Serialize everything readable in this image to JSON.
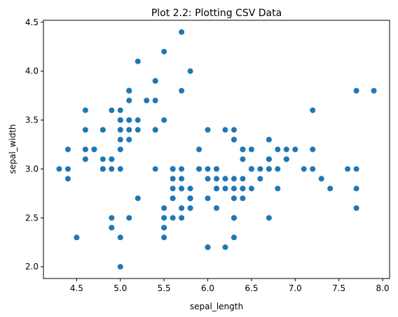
{
  "chart_data": {
    "type": "scatter",
    "title": "Plot 2.2: Plotting CSV Data",
    "xlabel": "sepal_length",
    "ylabel": "sepal_width",
    "xlim": [
      4.12,
      8.08
    ],
    "ylim": [
      1.88,
      4.52
    ],
    "grid": false,
    "legend": "none",
    "color": "#1f77b4",
    "xticks": [
      "4.5",
      "5.0",
      "5.5",
      "6.0",
      "6.5",
      "7.0",
      "7.5",
      "8.0"
    ],
    "yticks": [
      "2.0",
      "2.5",
      "3.0",
      "3.5",
      "4.0",
      "4.5"
    ],
    "points": [
      [
        5.1,
        3.5
      ],
      [
        4.9,
        3.0
      ],
      [
        4.7,
        3.2
      ],
      [
        4.6,
        3.1
      ],
      [
        5.0,
        3.6
      ],
      [
        5.4,
        3.9
      ],
      [
        4.6,
        3.4
      ],
      [
        5.0,
        3.4
      ],
      [
        4.4,
        2.9
      ],
      [
        4.9,
        3.1
      ],
      [
        5.4,
        3.7
      ],
      [
        4.8,
        3.4
      ],
      [
        4.8,
        3.0
      ],
      [
        4.3,
        3.0
      ],
      [
        5.8,
        4.0
      ],
      [
        5.7,
        4.4
      ],
      [
        5.4,
        3.9
      ],
      [
        5.1,
        3.5
      ],
      [
        5.7,
        3.8
      ],
      [
        5.1,
        3.8
      ],
      [
        5.4,
        3.4
      ],
      [
        5.1,
        3.7
      ],
      [
        4.6,
        3.6
      ],
      [
        5.1,
        3.3
      ],
      [
        4.8,
        3.4
      ],
      [
        5.0,
        3.0
      ],
      [
        5.0,
        3.4
      ],
      [
        5.2,
        3.5
      ],
      [
        5.2,
        3.4
      ],
      [
        4.7,
        3.2
      ],
      [
        4.8,
        3.1
      ],
      [
        5.4,
        3.4
      ],
      [
        5.2,
        4.1
      ],
      [
        5.5,
        4.2
      ],
      [
        4.9,
        3.1
      ],
      [
        5.0,
        3.2
      ],
      [
        5.5,
        3.5
      ],
      [
        4.9,
        3.6
      ],
      [
        4.4,
        3.0
      ],
      [
        5.1,
        3.4
      ],
      [
        5.0,
        3.5
      ],
      [
        4.5,
        2.3
      ],
      [
        4.4,
        3.2
      ],
      [
        5.0,
        3.5
      ],
      [
        5.1,
        3.8
      ],
      [
        4.8,
        3.0
      ],
      [
        5.1,
        3.8
      ],
      [
        4.6,
        3.2
      ],
      [
        5.3,
        3.7
      ],
      [
        5.0,
        3.3
      ],
      [
        7.0,
        3.2
      ],
      [
        6.4,
        3.2
      ],
      [
        6.9,
        3.1
      ],
      [
        5.5,
        2.3
      ],
      [
        6.5,
        2.8
      ],
      [
        5.7,
        2.8
      ],
      [
        6.3,
        3.3
      ],
      [
        4.9,
        2.4
      ],
      [
        6.6,
        2.9
      ],
      [
        5.2,
        2.7
      ],
      [
        5.0,
        2.0
      ],
      [
        5.9,
        3.0
      ],
      [
        6.0,
        2.2
      ],
      [
        6.1,
        2.9
      ],
      [
        5.6,
        2.9
      ],
      [
        6.7,
        3.1
      ],
      [
        5.6,
        3.0
      ],
      [
        5.8,
        2.7
      ],
      [
        6.2,
        2.2
      ],
      [
        5.6,
        2.5
      ],
      [
        5.9,
        3.2
      ],
      [
        6.1,
        2.8
      ],
      [
        6.3,
        2.5
      ],
      [
        6.1,
        2.8
      ],
      [
        6.4,
        2.9
      ],
      [
        6.6,
        3.0
      ],
      [
        6.8,
        2.8
      ],
      [
        6.7,
        3.0
      ],
      [
        6.0,
        2.9
      ],
      [
        5.7,
        2.6
      ],
      [
        5.5,
        2.4
      ],
      [
        5.5,
        2.4
      ],
      [
        5.8,
        2.7
      ],
      [
        6.0,
        2.7
      ],
      [
        5.4,
        3.0
      ],
      [
        6.0,
        3.4
      ],
      [
        6.7,
        3.1
      ],
      [
        6.3,
        2.3
      ],
      [
        5.6,
        3.0
      ],
      [
        5.5,
        2.5
      ],
      [
        5.5,
        2.6
      ],
      [
        6.1,
        3.0
      ],
      [
        5.8,
        2.6
      ],
      [
        5.0,
        2.3
      ],
      [
        5.6,
        2.7
      ],
      [
        5.7,
        3.0
      ],
      [
        5.7,
        2.9
      ],
      [
        6.2,
        2.9
      ],
      [
        5.1,
        2.5
      ],
      [
        5.7,
        2.8
      ],
      [
        6.3,
        3.3
      ],
      [
        5.8,
        2.7
      ],
      [
        7.1,
        3.0
      ],
      [
        6.3,
        2.9
      ],
      [
        6.5,
        3.0
      ],
      [
        7.6,
        3.0
      ],
      [
        4.9,
        2.5
      ],
      [
        7.3,
        2.9
      ],
      [
        6.7,
        2.5
      ],
      [
        7.2,
        3.6
      ],
      [
        6.5,
        3.2
      ],
      [
        6.4,
        2.7
      ],
      [
        6.8,
        3.0
      ],
      [
        5.7,
        2.5
      ],
      [
        5.8,
        2.8
      ],
      [
        6.4,
        3.2
      ],
      [
        6.5,
        3.0
      ],
      [
        7.7,
        3.8
      ],
      [
        7.7,
        2.6
      ],
      [
        6.0,
        2.2
      ],
      [
        6.9,
        3.2
      ],
      [
        5.6,
        2.8
      ],
      [
        7.7,
        2.8
      ],
      [
        6.3,
        2.7
      ],
      [
        6.7,
        3.3
      ],
      [
        7.2,
        3.2
      ],
      [
        6.2,
        2.8
      ],
      [
        6.1,
        3.0
      ],
      [
        6.4,
        2.8
      ],
      [
        7.2,
        3.0
      ],
      [
        7.4,
        2.8
      ],
      [
        7.9,
        3.8
      ],
      [
        6.4,
        2.8
      ],
      [
        6.3,
        2.8
      ],
      [
        6.1,
        2.6
      ],
      [
        7.7,
        3.0
      ],
      [
        6.3,
        3.4
      ],
      [
        6.4,
        3.1
      ],
      [
        6.0,
        3.0
      ],
      [
        6.9,
        3.1
      ],
      [
        6.7,
        3.1
      ],
      [
        6.9,
        3.1
      ],
      [
        5.8,
        2.7
      ],
      [
        6.8,
        3.2
      ],
      [
        6.7,
        3.3
      ],
      [
        6.7,
        3.0
      ],
      [
        6.3,
        2.5
      ],
      [
        6.5,
        3.0
      ],
      [
        6.2,
        3.4
      ],
      [
        5.9,
        3.0
      ]
    ]
  }
}
